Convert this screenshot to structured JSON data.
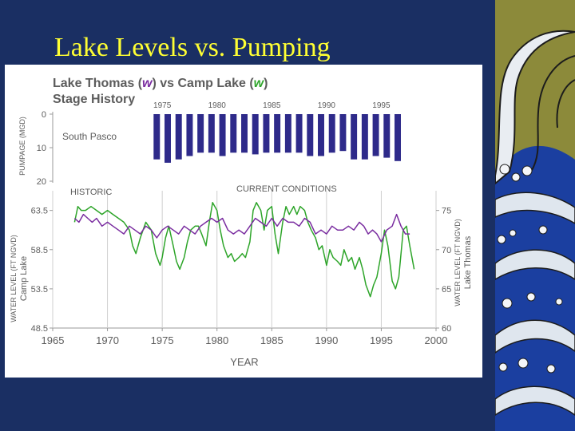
{
  "slide": {
    "title": "Lake Levels vs. Pumping"
  },
  "colors": {
    "background": "#1a2f63",
    "title": "#ffff33",
    "lake_thomas": "#7a2da0",
    "camp_lake": "#2ea52a",
    "pumpage": "#2e2a8a",
    "chart_text": "#5c5c5c"
  },
  "chart_data": {
    "type": "bar+line",
    "title_line1_part1": "Lake Thomas (",
    "title_line1_part2": ") vs Camp Lake (",
    "title_line1_part3": ")",
    "title_line2": "Stage History",
    "legend_glyph": "w",
    "annotations": {
      "historic": "HISTORIC",
      "current": "CURRENT CONDITIONS",
      "wellfield": "South Pasco"
    },
    "xlabel": "YEAR",
    "x_ticks": [
      "1965",
      "1970",
      "1975",
      "1980",
      "1985",
      "1990",
      "1995",
      "2000"
    ],
    "x_range": [
      1965,
      2000
    ],
    "pumpage_axis": {
      "label": "PUMPAGE (MGD)",
      "ticks": [
        "0",
        "10",
        "20"
      ],
      "range": [
        0,
        20
      ],
      "year_ticks": [
        "1975",
        "1980",
        "1985",
        "1990",
        "1995"
      ]
    },
    "left_axis": {
      "label_line1": "WATER LEVEL (FT NGVD)",
      "label_line2": "Camp Lake",
      "ticks": [
        "63.5",
        "58.5",
        "53.5",
        "48.5"
      ],
      "range": [
        48.5,
        65.5
      ]
    },
    "right_axis": {
      "label_line1": "WATER LEVEL (FT NGVD)",
      "label_line2": "Lake Thomas",
      "ticks": [
        "75",
        "70",
        "65",
        "60"
      ],
      "range": [
        60,
        77
      ]
    },
    "pumpage_years": [
      1974.5,
      1975.5,
      1976.5,
      1977.5,
      1978.5,
      1979.5,
      1980.5,
      1981.5,
      1982.5,
      1983.5,
      1984.5,
      1985.5,
      1986.5,
      1987.5,
      1988.5,
      1989.5,
      1990.5,
      1991.5,
      1992.5,
      1993.5,
      1994.5,
      1995.5,
      1996.5
    ],
    "pumpage_mgd": [
      13.5,
      14.5,
      13.5,
      12.5,
      11.5,
      11.5,
      12.5,
      11.5,
      11.5,
      12.0,
      11.5,
      11.5,
      11.5,
      11.5,
      12.5,
      12.5,
      11.5,
      11.0,
      13.5,
      13.5,
      12.5,
      13.0,
      14.0
    ],
    "series": [
      {
        "name": "Camp Lake",
        "axis": "left",
        "x": [
          1967.0,
          1967.3,
          1967.6,
          1968.0,
          1968.5,
          1969.0,
          1969.5,
          1970.0,
          1970.5,
          1971.0,
          1971.5,
          1972.0,
          1972.3,
          1972.6,
          1973.0,
          1973.5,
          1974.0,
          1974.4,
          1974.8,
          1975.0,
          1975.3,
          1975.6,
          1976.0,
          1976.3,
          1976.6,
          1977.0,
          1977.3,
          1977.6,
          1978.0,
          1978.3,
          1978.6,
          1979.0,
          1979.3,
          1979.6,
          1980.0,
          1980.3,
          1980.6,
          1981.0,
          1981.3,
          1981.6,
          1982.0,
          1982.3,
          1982.6,
          1983.0,
          1983.3,
          1983.6,
          1984.0,
          1984.3,
          1984.6,
          1985.0,
          1985.3,
          1985.6,
          1986.0,
          1986.3,
          1986.6,
          1987.0,
          1987.3,
          1987.6,
          1988.0,
          1988.3,
          1988.6,
          1989.0,
          1989.3,
          1989.6,
          1990.0,
          1990.3,
          1990.6,
          1991.0,
          1991.3,
          1991.6,
          1992.0,
          1992.3,
          1992.6,
          1993.0,
          1993.3,
          1993.6,
          1994.0,
          1994.3,
          1994.6,
          1995.0,
          1995.3,
          1995.6,
          1996.0,
          1996.3,
          1996.6,
          1997.0,
          1997.3,
          1997.6,
          1998.0
        ],
        "values": [
          62.0,
          64.0,
          63.5,
          63.5,
          64.0,
          63.5,
          63.0,
          63.5,
          63.0,
          62.5,
          62.0,
          61.0,
          59.0,
          58.0,
          60.0,
          62.0,
          61.0,
          58.0,
          56.5,
          57.5,
          60.0,
          61.5,
          59.0,
          57.0,
          56.0,
          57.5,
          59.5,
          61.0,
          61.5,
          61.5,
          60.5,
          59.0,
          62.0,
          64.5,
          63.5,
          61.0,
          59.0,
          57.5,
          58.0,
          57.0,
          57.5,
          58.0,
          57.5,
          59.5,
          63.5,
          64.5,
          63.5,
          61.0,
          63.5,
          64.0,
          60.5,
          58.0,
          62.0,
          64.0,
          63.0,
          64.0,
          63.0,
          64.0,
          63.5,
          62.0,
          61.0,
          60.0,
          58.5,
          59.0,
          56.5,
          58.5,
          57.5,
          57.0,
          56.5,
          58.5,
          57.0,
          57.5,
          56.0,
          57.5,
          56.0,
          54.0,
          52.5,
          54.0,
          55.0,
          58.0,
          61.0,
          59.0,
          54.5,
          53.5,
          55.0,
          61.0,
          61.5,
          59.0,
          56.0
        ]
      },
      {
        "name": "Lake Thomas",
        "axis": "right",
        "x": [
          1967.0,
          1967.4,
          1967.8,
          1968.2,
          1968.6,
          1969.0,
          1969.5,
          1970.0,
          1970.5,
          1971.0,
          1971.5,
          1972.0,
          1972.5,
          1973.0,
          1973.5,
          1974.0,
          1974.5,
          1975.0,
          1975.5,
          1976.0,
          1976.5,
          1977.0,
          1977.5,
          1978.0,
          1978.5,
          1979.0,
          1979.5,
          1980.0,
          1980.5,
          1981.0,
          1981.5,
          1982.0,
          1982.5,
          1983.0,
          1983.5,
          1984.0,
          1984.5,
          1985.0,
          1985.5,
          1986.0,
          1986.5,
          1987.0,
          1987.5,
          1988.0,
          1988.5,
          1989.0,
          1989.5,
          1990.0,
          1990.5,
          1991.0,
          1991.5,
          1992.0,
          1992.5,
          1993.0,
          1993.4,
          1993.8,
          1994.2,
          1994.6,
          1995.0,
          1995.5,
          1996.0,
          1996.4,
          1996.8,
          1997.2,
          1997.6
        ],
        "values": [
          74.0,
          73.5,
          74.5,
          74.0,
          73.5,
          74.0,
          73.0,
          73.5,
          73.0,
          72.5,
          72.0,
          73.0,
          72.5,
          72.0,
          73.0,
          72.5,
          71.5,
          72.5,
          73.0,
          72.5,
          72.0,
          73.0,
          72.5,
          72.0,
          73.0,
          73.5,
          74.0,
          73.5,
          74.0,
          72.5,
          72.0,
          72.5,
          72.0,
          73.0,
          74.0,
          73.5,
          73.0,
          74.0,
          73.0,
          74.0,
          73.5,
          73.5,
          73.0,
          74.0,
          73.5,
          72.0,
          72.5,
          72.0,
          73.0,
          72.5,
          72.5,
          73.0,
          72.5,
          73.5,
          73.0,
          72.0,
          72.5,
          72.0,
          71.0,
          72.5,
          73.0,
          74.5,
          73.0,
          72.0,
          72.0
        ]
      }
    ]
  }
}
